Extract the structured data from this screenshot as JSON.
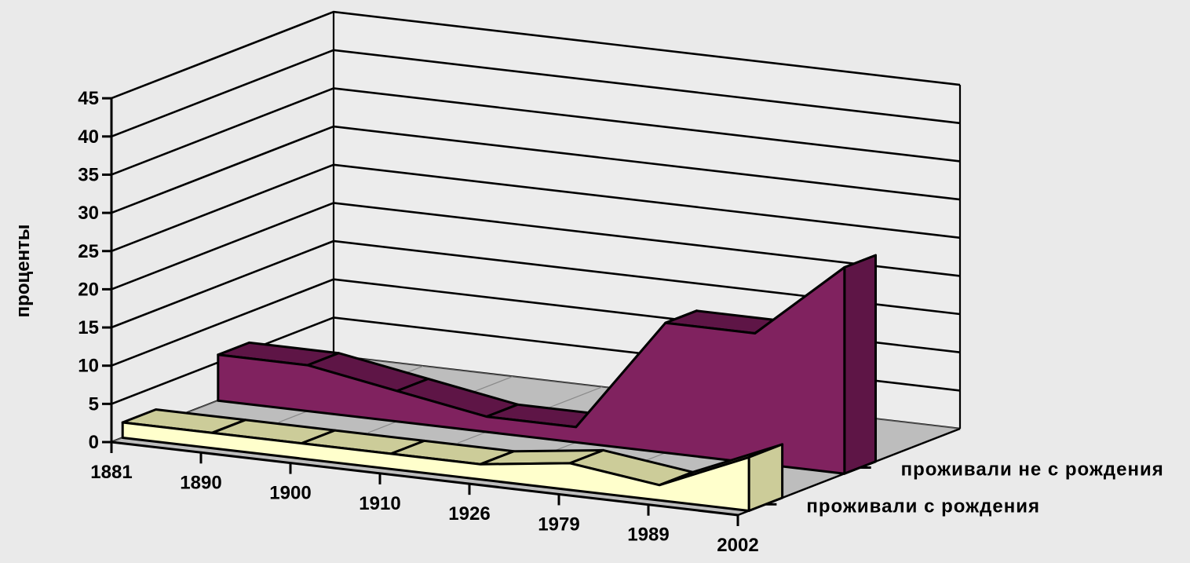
{
  "chart_data": {
    "type": "area",
    "subtype": "3d-area",
    "title": "",
    "xlabel": "",
    "ylabel": "проценты",
    "ylim": [
      0,
      45
    ],
    "yticks": [
      0,
      5,
      10,
      15,
      20,
      25,
      30,
      35,
      40,
      45
    ],
    "grid": true,
    "legend": "none",
    "categories": [
      "1881",
      "1890",
      "1900",
      "1910",
      "1926",
      "1979",
      "1989",
      "2002"
    ],
    "series": [
      {
        "name": "проживали с рождения",
        "values": [
          2,
          2,
          2,
          2,
          2,
          3.5,
          2,
          7
        ],
        "color": "#ffffcc",
        "top_color": "#cccc99"
      },
      {
        "name": "проживали не с рождения",
        "values": [
          6,
          6,
          4,
          2,
          2,
          17,
          17,
          27
        ],
        "color": "#80225f",
        "top_color": "#5e1546"
      }
    ]
  }
}
